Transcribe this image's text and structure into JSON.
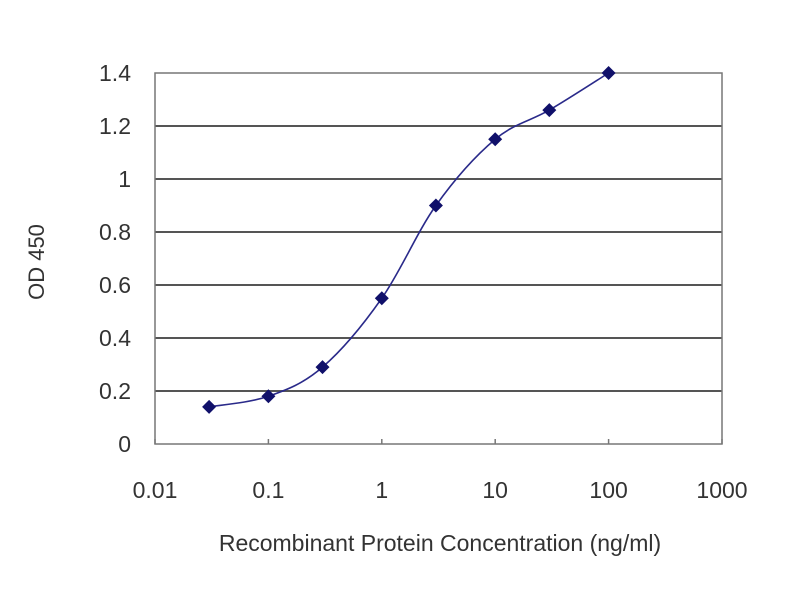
{
  "chart_data": {
    "type": "line",
    "title": "",
    "xlabel": "Recombinant Protein Concentration (ng/ml)",
    "ylabel": "OD 450",
    "x_scale": "log",
    "xlim": [
      0.01,
      1000
    ],
    "ylim": [
      0,
      1.4
    ],
    "x_ticks": [
      "0.01",
      "0.1",
      "1",
      "10",
      "100",
      "1000"
    ],
    "y_ticks": [
      "0",
      "0.2",
      "0.4",
      "0.6",
      "0.8",
      "1",
      "1.2",
      "1.4"
    ],
    "grid": "horizontal",
    "series": [
      {
        "x": [
          0.03,
          0.1,
          0.3,
          1,
          3,
          10,
          30,
          100
        ],
        "y": [
          0.14,
          0.18,
          0.29,
          0.55,
          0.9,
          1.15,
          1.26,
          1.4
        ],
        "marker": "diamond",
        "smooth": true
      }
    ],
    "colors": {
      "line": "#2a2a8a",
      "marker": "#10106a",
      "grid": "#555555"
    }
  }
}
